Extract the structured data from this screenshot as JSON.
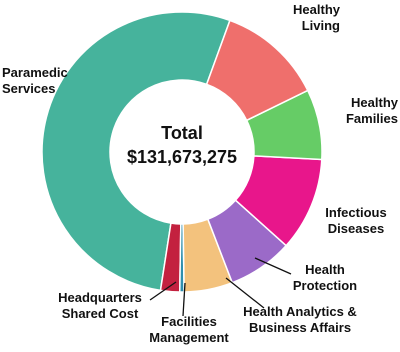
{
  "chart_data": {
    "type": "donut",
    "categories": [
      "Healthy Living",
      "Healthy Families",
      "Infectious Diseases",
      "Health Protection",
      "Health Analytics & Business Affairs",
      "Facilities Management",
      "Headquarters Shared Cost",
      "Paramedic Services"
    ],
    "values": [
      12.2,
      8.1,
      10.8,
      7.5,
      5.6,
      0.5,
      2.2,
      53.1
    ],
    "colors": [
      "#ef6f6c",
      "#66cc66",
      "#e8168b",
      "#9b6ac8",
      "#f3c27d",
      "#2f8fae",
      "#c3213f",
      "#46b39c"
    ],
    "center_title": "Total",
    "center_value": "$131,673,275"
  }
}
